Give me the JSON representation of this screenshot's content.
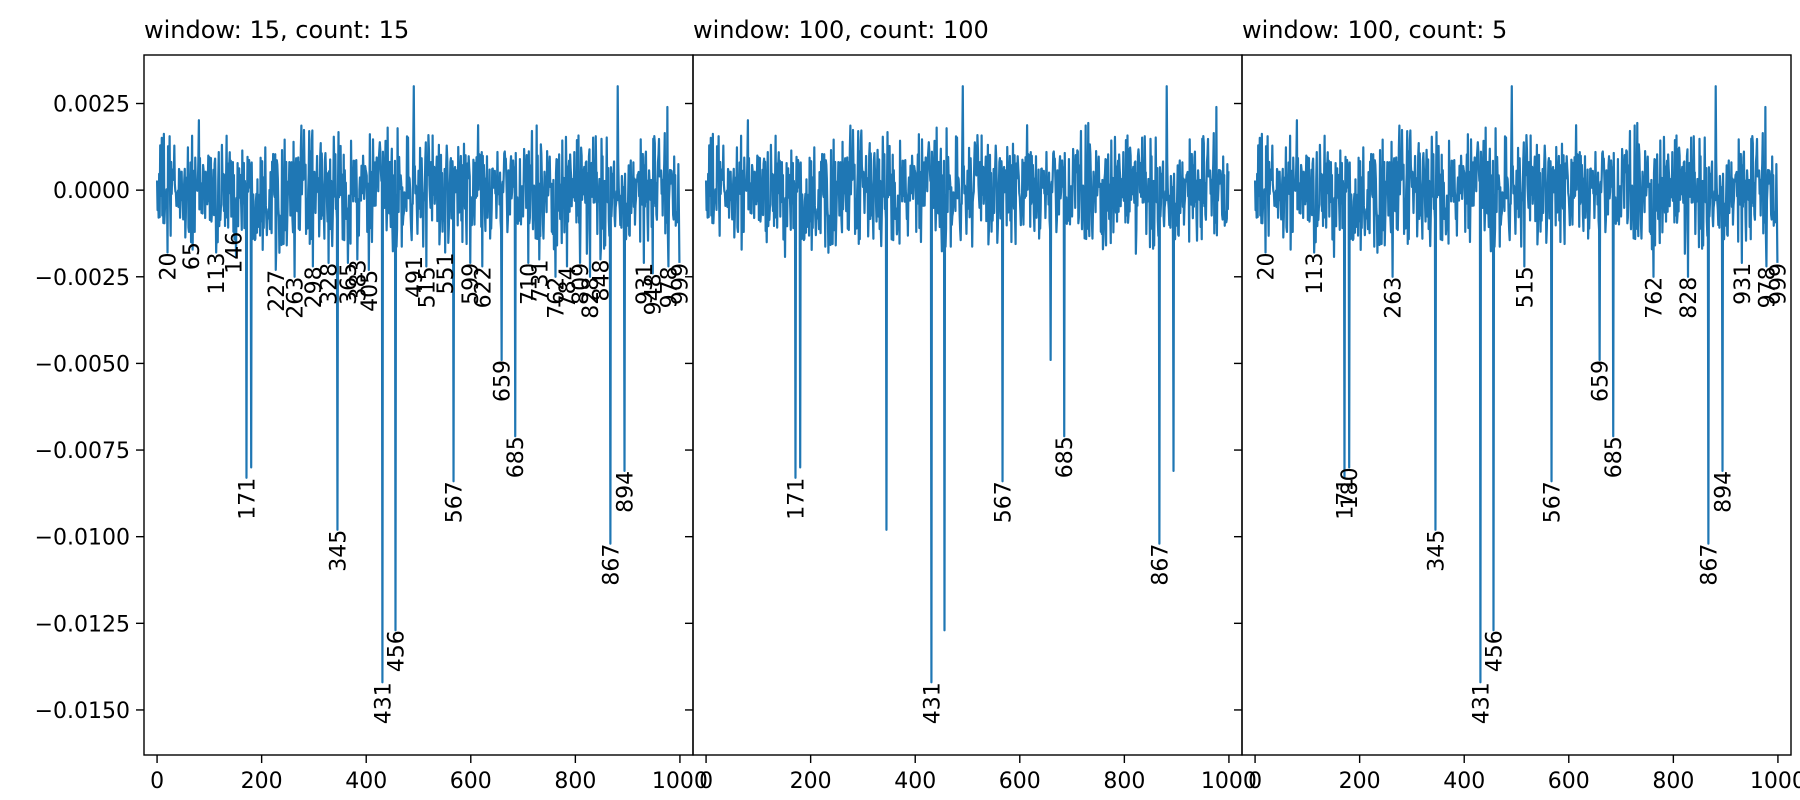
{
  "chart_data": [
    {
      "type": "line",
      "title": "window: 15, count: 15",
      "xlim": [
        -25,
        1025
      ],
      "ylim": [
        -0.0163,
        0.0039
      ],
      "x_ticks": [
        0,
        200,
        400,
        600,
        800,
        1000
      ],
      "y_ticks": [
        0.0025,
        0.0,
        -0.0025,
        -0.005,
        -0.0075,
        -0.01,
        -0.0125,
        -0.015
      ],
      "y_tick_labels": [
        "0.0025",
        "0.0000",
        "−0.0025",
        "−0.0050",
        "−0.0075",
        "−0.0100",
        "−0.0125",
        "−0.0150"
      ],
      "grid": false,
      "series": [
        {
          "color": "#1f77b4",
          "n_points": 1000,
          "noise_amplitude": 0.0013,
          "spikes": [
            {
              "x": 20,
              "y": -0.0018
            },
            {
              "x": 65,
              "y": -0.0015
            },
            {
              "x": 113,
              "y": -0.0018
            },
            {
              "x": 146,
              "y": -0.0012
            },
            {
              "x": 171,
              "y": -0.0083
            },
            {
              "x": 180,
              "y": -0.008
            },
            {
              "x": 227,
              "y": -0.0023
            },
            {
              "x": 263,
              "y": -0.0025
            },
            {
              "x": 298,
              "y": -0.0022
            },
            {
              "x": 328,
              "y": -0.0021
            },
            {
              "x": 345,
              "y": -0.0098
            },
            {
              "x": 365,
              "y": -0.0021
            },
            {
              "x": 383,
              "y": -0.002
            },
            {
              "x": 405,
              "y": -0.0023
            },
            {
              "x": 431,
              "y": -0.0142
            },
            {
              "x": 456,
              "y": -0.0127
            },
            {
              "x": 491,
              "y": -0.0019
            },
            {
              "x": 515,
              "y": -0.0022
            },
            {
              "x": 551,
              "y": -0.0018
            },
            {
              "x": 567,
              "y": -0.0084
            },
            {
              "x": 599,
              "y": -0.0021
            },
            {
              "x": 622,
              "y": -0.0022
            },
            {
              "x": 659,
              "y": -0.0049
            },
            {
              "x": 685,
              "y": -0.0071
            },
            {
              "x": 710,
              "y": -0.0021
            },
            {
              "x": 731,
              "y": -0.002
            },
            {
              "x": 762,
              "y": -0.0025
            },
            {
              "x": 784,
              "y": -0.0022
            },
            {
              "x": 809,
              "y": -0.0021
            },
            {
              "x": 828,
              "y": -0.0025
            },
            {
              "x": 848,
              "y": -0.002
            },
            {
              "x": 867,
              "y": -0.0102
            },
            {
              "x": 894,
              "y": -0.0081
            },
            {
              "x": 931,
              "y": -0.0021
            },
            {
              "x": 948,
              "y": -0.0024
            },
            {
              "x": 978,
              "y": -0.0022
            },
            {
              "x": 999,
              "y": -0.0021
            }
          ],
          "peaks": [
            {
              "x": 491,
              "y": 0.003
            },
            {
              "x": 881,
              "y": 0.003
            },
            {
              "x": 976,
              "y": 0.0024
            }
          ]
        }
      ],
      "annotations": [
        {
          "text": "20",
          "x": 20,
          "y": -0.0018
        },
        {
          "text": "65",
          "x": 65,
          "y": -0.0015
        },
        {
          "text": "113",
          "x": 113,
          "y": -0.0018
        },
        {
          "text": "146",
          "x": 146,
          "y": -0.0012
        },
        {
          "text": "171",
          "x": 171,
          "y": -0.0083
        },
        {
          "text": "227",
          "x": 227,
          "y": -0.0023
        },
        {
          "text": "263",
          "x": 263,
          "y": -0.0025
        },
        {
          "text": "298",
          "x": 298,
          "y": -0.0022
        },
        {
          "text": "328",
          "x": 328,
          "y": -0.0021
        },
        {
          "text": "345",
          "x": 345,
          "y": -0.0098
        },
        {
          "text": "365",
          "x": 365,
          "y": -0.0021
        },
        {
          "text": "383",
          "x": 383,
          "y": -0.002
        },
        {
          "text": "405",
          "x": 405,
          "y": -0.0023
        },
        {
          "text": "431",
          "x": 431,
          "y": -0.0142
        },
        {
          "text": "456",
          "x": 456,
          "y": -0.0127
        },
        {
          "text": "491",
          "x": 491,
          "y": -0.0019
        },
        {
          "text": "515",
          "x": 515,
          "y": -0.0022
        },
        {
          "text": "551",
          "x": 551,
          "y": -0.0018
        },
        {
          "text": "567",
          "x": 567,
          "y": -0.0084
        },
        {
          "text": "599",
          "x": 599,
          "y": -0.0021
        },
        {
          "text": "622",
          "x": 622,
          "y": -0.0022
        },
        {
          "text": "659",
          "x": 659,
          "y": -0.0049
        },
        {
          "text": "685",
          "x": 685,
          "y": -0.0071
        },
        {
          "text": "710",
          "x": 710,
          "y": -0.0021
        },
        {
          "text": "731",
          "x": 731,
          "y": -0.002
        },
        {
          "text": "762",
          "x": 762,
          "y": -0.0025
        },
        {
          "text": "784",
          "x": 784,
          "y": -0.0022
        },
        {
          "text": "809",
          "x": 809,
          "y": -0.0021
        },
        {
          "text": "828",
          "x": 828,
          "y": -0.0025
        },
        {
          "text": "848",
          "x": 848,
          "y": -0.002
        },
        {
          "text": "867",
          "x": 867,
          "y": -0.0102
        },
        {
          "text": "894",
          "x": 894,
          "y": -0.0081
        },
        {
          "text": "931",
          "x": 931,
          "y": -0.0021
        },
        {
          "text": "948",
          "x": 948,
          "y": -0.0024
        },
        {
          "text": "978",
          "x": 978,
          "y": -0.0022
        },
        {
          "text": "999",
          "x": 999,
          "y": -0.0021
        }
      ]
    },
    {
      "type": "line",
      "title": "window: 100, count: 100",
      "xlim": [
        -25,
        1025
      ],
      "ylim": [
        -0.0163,
        0.0039
      ],
      "x_ticks": [
        0,
        200,
        400,
        600,
        800,
        1000
      ],
      "y_ticks": [
        0.0025,
        0.0,
        -0.0025,
        -0.005,
        -0.0075,
        -0.01,
        -0.0125,
        -0.015
      ],
      "grid": false,
      "series": [
        {
          "color": "#1f77b4",
          "n_points": 1000,
          "noise_amplitude": 0.0013,
          "spikes": [
            {
              "x": 171,
              "y": -0.0083
            },
            {
              "x": 180,
              "y": -0.008
            },
            {
              "x": 345,
              "y": -0.0098
            },
            {
              "x": 431,
              "y": -0.0142
            },
            {
              "x": 456,
              "y": -0.0127
            },
            {
              "x": 567,
              "y": -0.0084
            },
            {
              "x": 659,
              "y": -0.0049
            },
            {
              "x": 685,
              "y": -0.0071
            },
            {
              "x": 867,
              "y": -0.0102
            },
            {
              "x": 894,
              "y": -0.0081
            }
          ],
          "peaks": [
            {
              "x": 491,
              "y": 0.003
            },
            {
              "x": 881,
              "y": 0.003
            },
            {
              "x": 976,
              "y": 0.0024
            }
          ]
        }
      ],
      "annotations": [
        {
          "text": "171",
          "x": 171,
          "y": -0.0083
        },
        {
          "text": "431",
          "x": 431,
          "y": -0.0142
        },
        {
          "text": "567",
          "x": 567,
          "y": -0.0084
        },
        {
          "text": "685",
          "x": 685,
          "y": -0.0071
        },
        {
          "text": "867",
          "x": 867,
          "y": -0.0102
        }
      ]
    },
    {
      "type": "line",
      "title": "window: 100, count: 5",
      "xlim": [
        -25,
        1025
      ],
      "ylim": [
        -0.0163,
        0.0039
      ],
      "x_ticks": [
        0,
        200,
        400,
        600,
        800,
        1000
      ],
      "y_ticks": [
        0.0025,
        0.0,
        -0.0025,
        -0.005,
        -0.0075,
        -0.01,
        -0.0125,
        -0.015
      ],
      "grid": false,
      "series": [
        {
          "color": "#1f77b4",
          "n_points": 1000,
          "noise_amplitude": 0.0013,
          "spikes": [
            {
              "x": 20,
              "y": -0.0018
            },
            {
              "x": 113,
              "y": -0.0018
            },
            {
              "x": 171,
              "y": -0.0083
            },
            {
              "x": 180,
              "y": -0.008
            },
            {
              "x": 263,
              "y": -0.0025
            },
            {
              "x": 345,
              "y": -0.0098
            },
            {
              "x": 431,
              "y": -0.0142
            },
            {
              "x": 456,
              "y": -0.0127
            },
            {
              "x": 515,
              "y": -0.0022
            },
            {
              "x": 567,
              "y": -0.0084
            },
            {
              "x": 659,
              "y": -0.0049
            },
            {
              "x": 685,
              "y": -0.0071
            },
            {
              "x": 762,
              "y": -0.0025
            },
            {
              "x": 828,
              "y": -0.0025
            },
            {
              "x": 867,
              "y": -0.0102
            },
            {
              "x": 894,
              "y": -0.0081
            },
            {
              "x": 931,
              "y": -0.0021
            },
            {
              "x": 978,
              "y": -0.0022
            },
            {
              "x": 999,
              "y": -0.0021
            }
          ],
          "peaks": [
            {
              "x": 491,
              "y": 0.003
            },
            {
              "x": 881,
              "y": 0.003
            },
            {
              "x": 976,
              "y": 0.0024
            }
          ]
        }
      ],
      "annotations": [
        {
          "text": "20",
          "x": 20,
          "y": -0.0018
        },
        {
          "text": "113",
          "x": 113,
          "y": -0.0018
        },
        {
          "text": "171",
          "x": 171,
          "y": -0.0083
        },
        {
          "text": "180",
          "x": 180,
          "y": -0.008
        },
        {
          "text": "263",
          "x": 263,
          "y": -0.0025
        },
        {
          "text": "345",
          "x": 345,
          "y": -0.0098
        },
        {
          "text": "431",
          "x": 431,
          "y": -0.0142
        },
        {
          "text": "456",
          "x": 456,
          "y": -0.0127
        },
        {
          "text": "515",
          "x": 515,
          "y": -0.0022
        },
        {
          "text": "567",
          "x": 567,
          "y": -0.0084
        },
        {
          "text": "659",
          "x": 659,
          "y": -0.0049
        },
        {
          "text": "685",
          "x": 685,
          "y": -0.0071
        },
        {
          "text": "762",
          "x": 762,
          "y": -0.0025
        },
        {
          "text": "828",
          "x": 828,
          "y": -0.0025
        },
        {
          "text": "867",
          "x": 867,
          "y": -0.0102
        },
        {
          "text": "894",
          "x": 894,
          "y": -0.0081
        },
        {
          "text": "931",
          "x": 931,
          "y": -0.0021
        },
        {
          "text": "978",
          "x": 978,
          "y": -0.0022
        },
        {
          "text": "999",
          "x": 999,
          "y": -0.0021
        }
      ]
    }
  ]
}
